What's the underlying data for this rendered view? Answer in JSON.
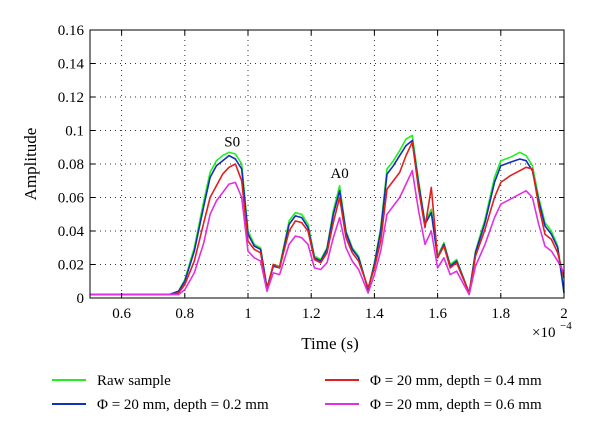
{
  "chart_data": {
    "type": "line",
    "xlabel": "Time (s)",
    "ylabel": "Amplitude",
    "x_multiplier_label": "×10",
    "x_multiplier_exponent": "−4",
    "xlim": [
      0.5,
      2.0
    ],
    "ylim": [
      0,
      0.16
    ],
    "x_ticks": [
      0.6,
      0.8,
      1.0,
      1.2,
      1.4,
      1.6,
      1.8,
      2.0
    ],
    "x_tick_labels": [
      "0.6",
      "0.8",
      "1",
      "1.2",
      "1.4",
      "1.6",
      "1.8",
      "2"
    ],
    "y_ticks": [
      0,
      0.02,
      0.04,
      0.06,
      0.08,
      0.1,
      0.12,
      0.14,
      0.16
    ],
    "y_tick_labels": [
      "0",
      "0.02",
      "0.04",
      "0.06",
      "0.08",
      "0.1",
      "0.12",
      "0.14",
      "0.16"
    ],
    "grid": true,
    "legend_position": "bottom",
    "annotations": [
      {
        "text": "S0",
        "x": 0.95,
        "y": 0.087
      },
      {
        "text": "A0",
        "x": 1.29,
        "y": 0.068
      }
    ],
    "series": [
      {
        "name": "Raw sample",
        "color": "#22ee22",
        "points": [
          [
            0.5,
            0.002
          ],
          [
            0.75,
            0.002
          ],
          [
            0.78,
            0.004
          ],
          [
            0.8,
            0.011
          ],
          [
            0.83,
            0.03
          ],
          [
            0.86,
            0.058
          ],
          [
            0.88,
            0.075
          ],
          [
            0.9,
            0.082
          ],
          [
            0.92,
            0.085
          ],
          [
            0.94,
            0.087
          ],
          [
            0.96,
            0.086
          ],
          [
            0.98,
            0.08
          ],
          [
            1.0,
            0.04
          ],
          [
            1.02,
            0.032
          ],
          [
            1.04,
            0.03
          ],
          [
            1.06,
            0.006
          ],
          [
            1.08,
            0.02
          ],
          [
            1.1,
            0.019
          ],
          [
            1.13,
            0.046
          ],
          [
            1.15,
            0.051
          ],
          [
            1.17,
            0.05
          ],
          [
            1.19,
            0.044
          ],
          [
            1.21,
            0.025
          ],
          [
            1.23,
            0.023
          ],
          [
            1.25,
            0.03
          ],
          [
            1.27,
            0.052
          ],
          [
            1.29,
            0.067
          ],
          [
            1.31,
            0.04
          ],
          [
            1.33,
            0.03
          ],
          [
            1.35,
            0.025
          ],
          [
            1.38,
            0.005
          ],
          [
            1.4,
            0.021
          ],
          [
            1.42,
            0.042
          ],
          [
            1.44,
            0.077
          ],
          [
            1.46,
            0.082
          ],
          [
            1.48,
            0.088
          ],
          [
            1.5,
            0.095
          ],
          [
            1.52,
            0.097
          ],
          [
            1.54,
            0.07
          ],
          [
            1.56,
            0.045
          ],
          [
            1.58,
            0.053
          ],
          [
            1.6,
            0.025
          ],
          [
            1.62,
            0.033
          ],
          [
            1.64,
            0.02
          ],
          [
            1.66,
            0.023
          ],
          [
            1.7,
            0.003
          ],
          [
            1.72,
            0.028
          ],
          [
            1.75,
            0.047
          ],
          [
            1.78,
            0.072
          ],
          [
            1.8,
            0.082
          ],
          [
            1.83,
            0.084
          ],
          [
            1.86,
            0.087
          ],
          [
            1.88,
            0.085
          ],
          [
            1.9,
            0.079
          ],
          [
            1.92,
            0.06
          ],
          [
            1.94,
            0.045
          ],
          [
            1.96,
            0.04
          ],
          [
            1.98,
            0.031
          ],
          [
            2.0,
            0.004
          ]
        ]
      },
      {
        "name": "Φ = 20 mm, depth = 0.2 mm",
        "color": "#1230b8",
        "points": [
          [
            0.5,
            0.002
          ],
          [
            0.75,
            0.002
          ],
          [
            0.78,
            0.004
          ],
          [
            0.8,
            0.01
          ],
          [
            0.83,
            0.028
          ],
          [
            0.86,
            0.055
          ],
          [
            0.88,
            0.072
          ],
          [
            0.9,
            0.079
          ],
          [
            0.92,
            0.082
          ],
          [
            0.94,
            0.085
          ],
          [
            0.96,
            0.083
          ],
          [
            0.98,
            0.077
          ],
          [
            1.0,
            0.038
          ],
          [
            1.02,
            0.031
          ],
          [
            1.04,
            0.029
          ],
          [
            1.06,
            0.006
          ],
          [
            1.08,
            0.019
          ],
          [
            1.1,
            0.018
          ],
          [
            1.13,
            0.044
          ],
          [
            1.15,
            0.049
          ],
          [
            1.17,
            0.048
          ],
          [
            1.19,
            0.042
          ],
          [
            1.21,
            0.024
          ],
          [
            1.23,
            0.022
          ],
          [
            1.25,
            0.029
          ],
          [
            1.27,
            0.05
          ],
          [
            1.29,
            0.064
          ],
          [
            1.31,
            0.039
          ],
          [
            1.33,
            0.029
          ],
          [
            1.35,
            0.024
          ],
          [
            1.38,
            0.005
          ],
          [
            1.4,
            0.02
          ],
          [
            1.42,
            0.04
          ],
          [
            1.44,
            0.074
          ],
          [
            1.46,
            0.079
          ],
          [
            1.48,
            0.085
          ],
          [
            1.5,
            0.091
          ],
          [
            1.52,
            0.094
          ],
          [
            1.54,
            0.068
          ],
          [
            1.56,
            0.044
          ],
          [
            1.58,
            0.051
          ],
          [
            1.6,
            0.024
          ],
          [
            1.62,
            0.032
          ],
          [
            1.64,
            0.019
          ],
          [
            1.66,
            0.022
          ],
          [
            1.7,
            0.003
          ],
          [
            1.72,
            0.027
          ],
          [
            1.75,
            0.045
          ],
          [
            1.78,
            0.069
          ],
          [
            1.8,
            0.079
          ],
          [
            1.83,
            0.081
          ],
          [
            1.86,
            0.083
          ],
          [
            1.88,
            0.082
          ],
          [
            1.9,
            0.076
          ],
          [
            1.92,
            0.058
          ],
          [
            1.94,
            0.043
          ],
          [
            1.96,
            0.038
          ],
          [
            1.98,
            0.03
          ],
          [
            2.0,
            0.003
          ]
        ]
      },
      {
        "name": "Φ = 20 mm, depth = 0.4 mm",
        "color": "#e02020",
        "points": [
          [
            0.5,
            0.002
          ],
          [
            0.75,
            0.002
          ],
          [
            0.78,
            0.003
          ],
          [
            0.8,
            0.008
          ],
          [
            0.83,
            0.022
          ],
          [
            0.86,
            0.045
          ],
          [
            0.88,
            0.06
          ],
          [
            0.9,
            0.067
          ],
          [
            0.92,
            0.074
          ],
          [
            0.94,
            0.078
          ],
          [
            0.96,
            0.08
          ],
          [
            0.98,
            0.07
          ],
          [
            1.0,
            0.034
          ],
          [
            1.02,
            0.029
          ],
          [
            1.04,
            0.027
          ],
          [
            1.06,
            0.005
          ],
          [
            1.08,
            0.02
          ],
          [
            1.1,
            0.018
          ],
          [
            1.13,
            0.04
          ],
          [
            1.15,
            0.046
          ],
          [
            1.17,
            0.045
          ],
          [
            1.19,
            0.04
          ],
          [
            1.21,
            0.023
          ],
          [
            1.23,
            0.021
          ],
          [
            1.25,
            0.027
          ],
          [
            1.27,
            0.045
          ],
          [
            1.29,
            0.06
          ],
          [
            1.31,
            0.036
          ],
          [
            1.33,
            0.027
          ],
          [
            1.35,
            0.022
          ],
          [
            1.38,
            0.006
          ],
          [
            1.4,
            0.018
          ],
          [
            1.42,
            0.034
          ],
          [
            1.44,
            0.065
          ],
          [
            1.46,
            0.07
          ],
          [
            1.48,
            0.075
          ],
          [
            1.5,
            0.085
          ],
          [
            1.52,
            0.093
          ],
          [
            1.54,
            0.065
          ],
          [
            1.56,
            0.042
          ],
          [
            1.58,
            0.066
          ],
          [
            1.6,
            0.024
          ],
          [
            1.62,
            0.031
          ],
          [
            1.64,
            0.018
          ],
          [
            1.66,
            0.021
          ],
          [
            1.7,
            0.003
          ],
          [
            1.72,
            0.025
          ],
          [
            1.75,
            0.041
          ],
          [
            1.78,
            0.06
          ],
          [
            1.8,
            0.069
          ],
          [
            1.83,
            0.073
          ],
          [
            1.86,
            0.076
          ],
          [
            1.88,
            0.078
          ],
          [
            1.9,
            0.077
          ],
          [
            1.92,
            0.055
          ],
          [
            1.94,
            0.038
          ],
          [
            1.96,
            0.035
          ],
          [
            1.98,
            0.027
          ],
          [
            2.0,
            0.012
          ]
        ]
      },
      {
        "name": "Φ = 20 mm, depth = 0.6 mm",
        "color": "#e030e0",
        "points": [
          [
            0.5,
            0.002
          ],
          [
            0.75,
            0.002
          ],
          [
            0.78,
            0.002
          ],
          [
            0.8,
            0.005
          ],
          [
            0.83,
            0.015
          ],
          [
            0.86,
            0.033
          ],
          [
            0.88,
            0.05
          ],
          [
            0.9,
            0.058
          ],
          [
            0.92,
            0.063
          ],
          [
            0.94,
            0.068
          ],
          [
            0.96,
            0.069
          ],
          [
            0.98,
            0.06
          ],
          [
            1.0,
            0.028
          ],
          [
            1.02,
            0.024
          ],
          [
            1.04,
            0.022
          ],
          [
            1.06,
            0.004
          ],
          [
            1.08,
            0.015
          ],
          [
            1.1,
            0.014
          ],
          [
            1.13,
            0.032
          ],
          [
            1.15,
            0.037
          ],
          [
            1.17,
            0.036
          ],
          [
            1.19,
            0.032
          ],
          [
            1.21,
            0.018
          ],
          [
            1.23,
            0.017
          ],
          [
            1.25,
            0.021
          ],
          [
            1.27,
            0.036
          ],
          [
            1.29,
            0.048
          ],
          [
            1.31,
            0.03
          ],
          [
            1.33,
            0.022
          ],
          [
            1.35,
            0.017
          ],
          [
            1.38,
            0.003
          ],
          [
            1.4,
            0.014
          ],
          [
            1.42,
            0.028
          ],
          [
            1.44,
            0.05
          ],
          [
            1.46,
            0.055
          ],
          [
            1.48,
            0.06
          ],
          [
            1.5,
            0.068
          ],
          [
            1.52,
            0.076
          ],
          [
            1.54,
            0.052
          ],
          [
            1.56,
            0.032
          ],
          [
            1.58,
            0.04
          ],
          [
            1.6,
            0.018
          ],
          [
            1.62,
            0.024
          ],
          [
            1.64,
            0.014
          ],
          [
            1.66,
            0.016
          ],
          [
            1.7,
            0.002
          ],
          [
            1.72,
            0.019
          ],
          [
            1.75,
            0.032
          ],
          [
            1.78,
            0.048
          ],
          [
            1.8,
            0.056
          ],
          [
            1.83,
            0.059
          ],
          [
            1.86,
            0.062
          ],
          [
            1.88,
            0.064
          ],
          [
            1.9,
            0.06
          ],
          [
            1.92,
            0.044
          ],
          [
            1.94,
            0.031
          ],
          [
            1.96,
            0.028
          ],
          [
            1.98,
            0.022
          ],
          [
            2.0,
            0.015
          ]
        ]
      }
    ]
  }
}
